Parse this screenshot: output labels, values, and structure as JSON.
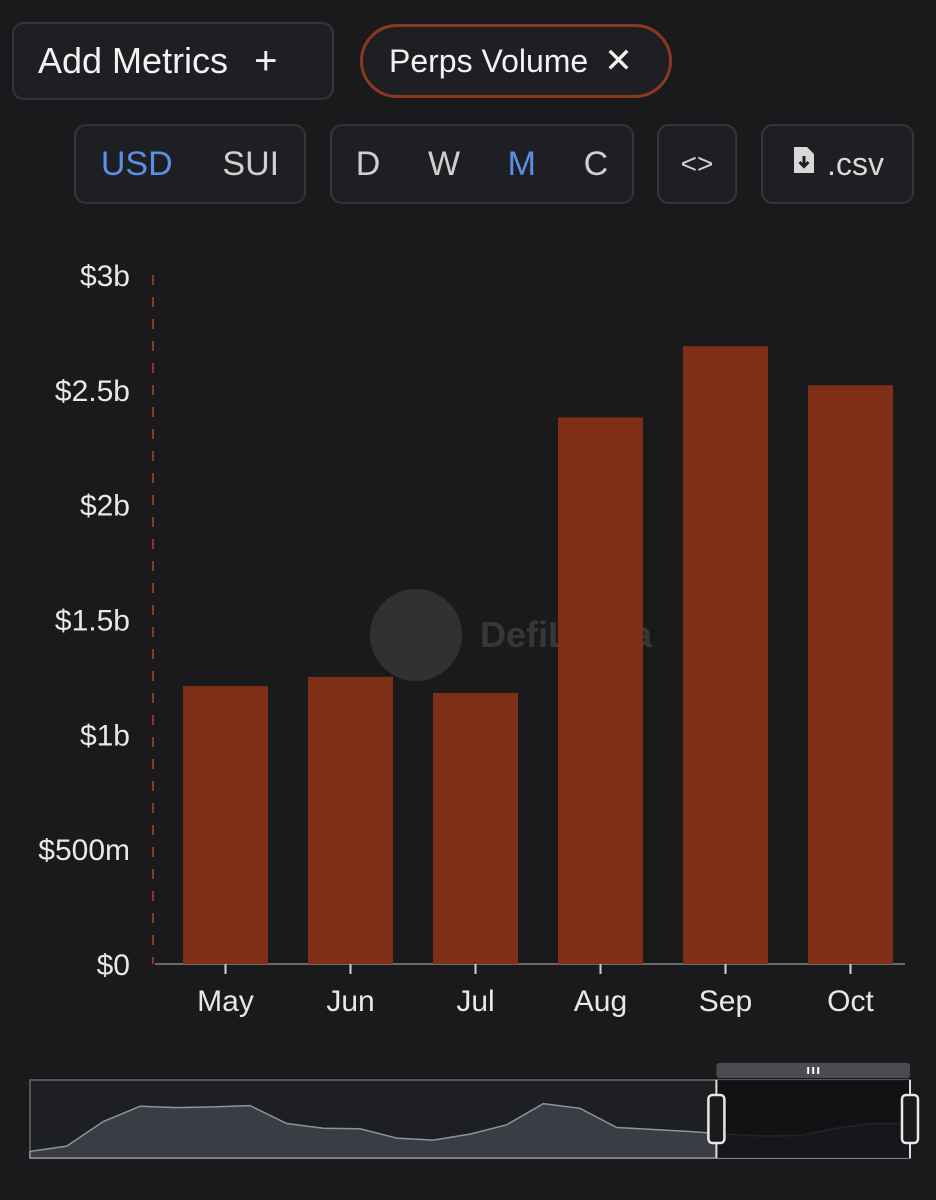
{
  "toolbar": {
    "add_metrics_label": "Add Metrics",
    "add_symbol": "+",
    "metric_chip_label": "Perps Volume",
    "metric_chip_close": "✕",
    "currency_options": [
      "USD",
      "SUI"
    ],
    "currency_selected": "USD",
    "interval_options": [
      "D",
      "W",
      "M",
      "C"
    ],
    "interval_selected": "M",
    "embed_label": "<>",
    "csv_label": ".csv"
  },
  "watermark": {
    "text": "DefiLlama"
  },
  "colors": {
    "background": "#1a1a1c",
    "bar": "#7f2f15",
    "active_option": "#5b8fe6",
    "chip_border": "#8a3a20"
  },
  "chart_data": {
    "type": "bar",
    "categories": [
      "May",
      "Jun",
      "Jul",
      "Aug",
      "Sep",
      "Oct"
    ],
    "series": [
      {
        "values": [
          1.21,
          1.25,
          1.18,
          2.38,
          2.69,
          2.52
        ]
      }
    ],
    "unit": "billions USD",
    "yticks": [
      0,
      0.5,
      1,
      1.5,
      2,
      2.5,
      3
    ],
    "ytick_labels": [
      "$0",
      "$500m",
      "$1b",
      "$1.5b",
      "$2b",
      "$2.5b",
      "$3b"
    ],
    "ylim": [
      0,
      3
    ],
    "grid": false,
    "legend": "none"
  },
  "brush": {
    "overview_values": [
      0.1,
      0.18,
      0.55,
      0.78,
      0.76,
      0.77,
      0.79,
      0.52,
      0.45,
      0.44,
      0.3,
      0.27,
      0.36,
      0.5,
      0.82,
      0.75,
      0.46,
      0.43,
      0.4,
      0.36,
      0.33,
      0.34,
      0.45,
      0.52,
      0.52
    ],
    "selected_fraction_start": 0.78,
    "selected_fraction_end": 1.0
  }
}
